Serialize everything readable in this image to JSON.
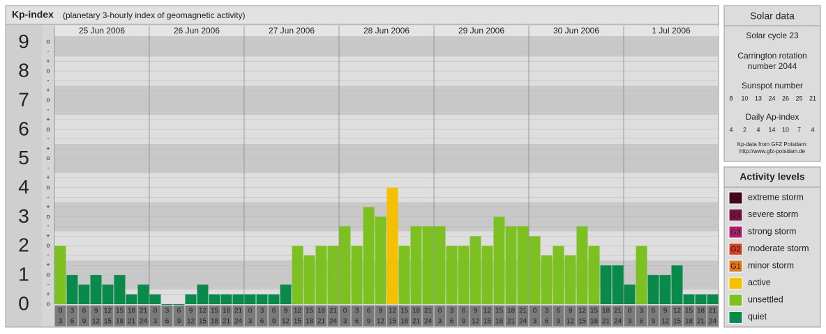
{
  "chart_data": {
    "type": "bar",
    "title": "Kp-index",
    "subtitle": "(planetary 3-hourly index of geomagnetic activity)",
    "days": [
      "25 Jun 2006",
      "26 Jun 2006",
      "27 Jun 2006",
      "28 Jun 2006",
      "29 Jun 2006",
      "30 Jun 2006",
      "1 Jul 2006"
    ],
    "hour_labels": [
      [
        "0",
        "3"
      ],
      [
        "3",
        "6"
      ],
      [
        "6",
        "9"
      ],
      [
        "9",
        "12"
      ],
      [
        "12",
        "15"
      ],
      [
        "15",
        "18"
      ],
      [
        "18",
        "21"
      ],
      [
        "21",
        "24"
      ]
    ],
    "values": [
      2,
      1,
      0.67,
      1,
      0.67,
      1,
      0.33,
      0.67,
      0.33,
      0,
      0,
      0.33,
      0.67,
      0.33,
      0.33,
      0.33,
      0.33,
      0.33,
      0.33,
      0.67,
      2,
      1.67,
      2,
      2,
      2.67,
      2,
      3.33,
      3,
      4,
      2,
      2.67,
      2.67,
      2.67,
      2,
      2,
      2.33,
      2,
      3,
      2.67,
      2.67,
      2.33,
      1.67,
      2,
      1.67,
      2.67,
      2,
      1.33,
      1.33,
      0.67,
      2,
      1,
      1,
      1.33,
      0.33,
      0.33,
      0.33
    ],
    "colors": [
      "#7cc022",
      "#0a8a4a",
      "#0a8a4a",
      "#0a8a4a",
      "#0a8a4a",
      "#0a8a4a",
      "#0a8a4a",
      "#0a8a4a",
      "#0a8a4a",
      "#0a8a4a",
      "#0a8a4a",
      "#0a8a4a",
      "#0a8a4a",
      "#0a8a4a",
      "#0a8a4a",
      "#0a8a4a",
      "#0a8a4a",
      "#0a8a4a",
      "#0a8a4a",
      "#0a8a4a",
      "#7cc022",
      "#7cc022",
      "#7cc022",
      "#7cc022",
      "#7cc022",
      "#7cc022",
      "#7cc022",
      "#7cc022",
      "#f5c000",
      "#7cc022",
      "#7cc022",
      "#7cc022",
      "#7cc022",
      "#7cc022",
      "#7cc022",
      "#7cc022",
      "#7cc022",
      "#7cc022",
      "#7cc022",
      "#7cc022",
      "#7cc022",
      "#7cc022",
      "#7cc022",
      "#7cc022",
      "#7cc022",
      "#7cc022",
      "#0a8a4a",
      "#0a8a4a",
      "#0a8a4a",
      "#7cc022",
      "#0a8a4a",
      "#0a8a4a",
      "#0a8a4a",
      "#0a8a4a",
      "#0a8a4a",
      "#0a8a4a"
    ],
    "ylim": [
      0,
      9.2
    ],
    "yticks": [
      0,
      1,
      2,
      3,
      4,
      5,
      6,
      7,
      8,
      9
    ],
    "minor_ticks": [
      {
        "value": 9,
        "label": "o"
      },
      {
        "value": 8.67,
        "label": "-"
      },
      {
        "value": 8.33,
        "label": "+"
      },
      {
        "value": 8,
        "label": "o"
      },
      {
        "value": 7.67,
        "label": "-"
      },
      {
        "value": 7.33,
        "label": "+"
      },
      {
        "value": 7,
        "label": "o"
      },
      {
        "value": 6.67,
        "label": "-"
      },
      {
        "value": 6.33,
        "label": "+"
      },
      {
        "value": 6,
        "label": "o"
      },
      {
        "value": 5.67,
        "label": "-"
      },
      {
        "value": 5.33,
        "label": "+"
      },
      {
        "value": 5,
        "label": "o"
      },
      {
        "value": 4.67,
        "label": "-"
      },
      {
        "value": 4.33,
        "label": "+"
      },
      {
        "value": 4,
        "label": "o"
      },
      {
        "value": 3.67,
        "label": "-"
      },
      {
        "value": 3.33,
        "label": "+"
      },
      {
        "value": 3,
        "label": "o"
      },
      {
        "value": 2.67,
        "label": "-"
      },
      {
        "value": 2.33,
        "label": "+"
      },
      {
        "value": 2,
        "label": "o"
      },
      {
        "value": 1.67,
        "label": "-"
      },
      {
        "value": 1.33,
        "label": "+"
      },
      {
        "value": 1,
        "label": "o"
      },
      {
        "value": 0.67,
        "label": "-"
      },
      {
        "value": 0.33,
        "label": "+"
      },
      {
        "value": 0,
        "label": "o"
      }
    ],
    "grid": true
  },
  "solar_data": {
    "title": "Solar data",
    "cycle": "Solar cycle 23",
    "carrington": [
      "Carrington rotation",
      "number 2044"
    ],
    "sunspot_title": "Sunspot number",
    "sunspot": [
      8,
      10,
      13,
      24,
      26,
      25,
      21
    ],
    "ap_title": "Daily Ap-index",
    "ap": [
      4,
      2,
      4,
      14,
      10,
      7,
      4
    ],
    "source": [
      "Kp-data from GFZ Potsdam:",
      "http://www.gfz-potsdam.de"
    ]
  },
  "activity_levels": {
    "title": "Activity levels",
    "items": [
      {
        "badge": "G5",
        "name": "extreme storm",
        "color": "#4a0020"
      },
      {
        "badge": "G4",
        "name": "severe storm",
        "color": "#7a1040"
      },
      {
        "badge": "G3",
        "name": "strong storm",
        "color": "#b0206a"
      },
      {
        "badge": "G2",
        "name": "moderate storm",
        "color": "#d84020"
      },
      {
        "badge": "G1",
        "name": "minor storm",
        "color": "#e07820"
      },
      {
        "name": "active",
        "color": "#f5c000"
      },
      {
        "name": "unsettled",
        "color": "#7cc022"
      },
      {
        "name": "quiet",
        "color": "#0a8a4a"
      }
    ]
  }
}
